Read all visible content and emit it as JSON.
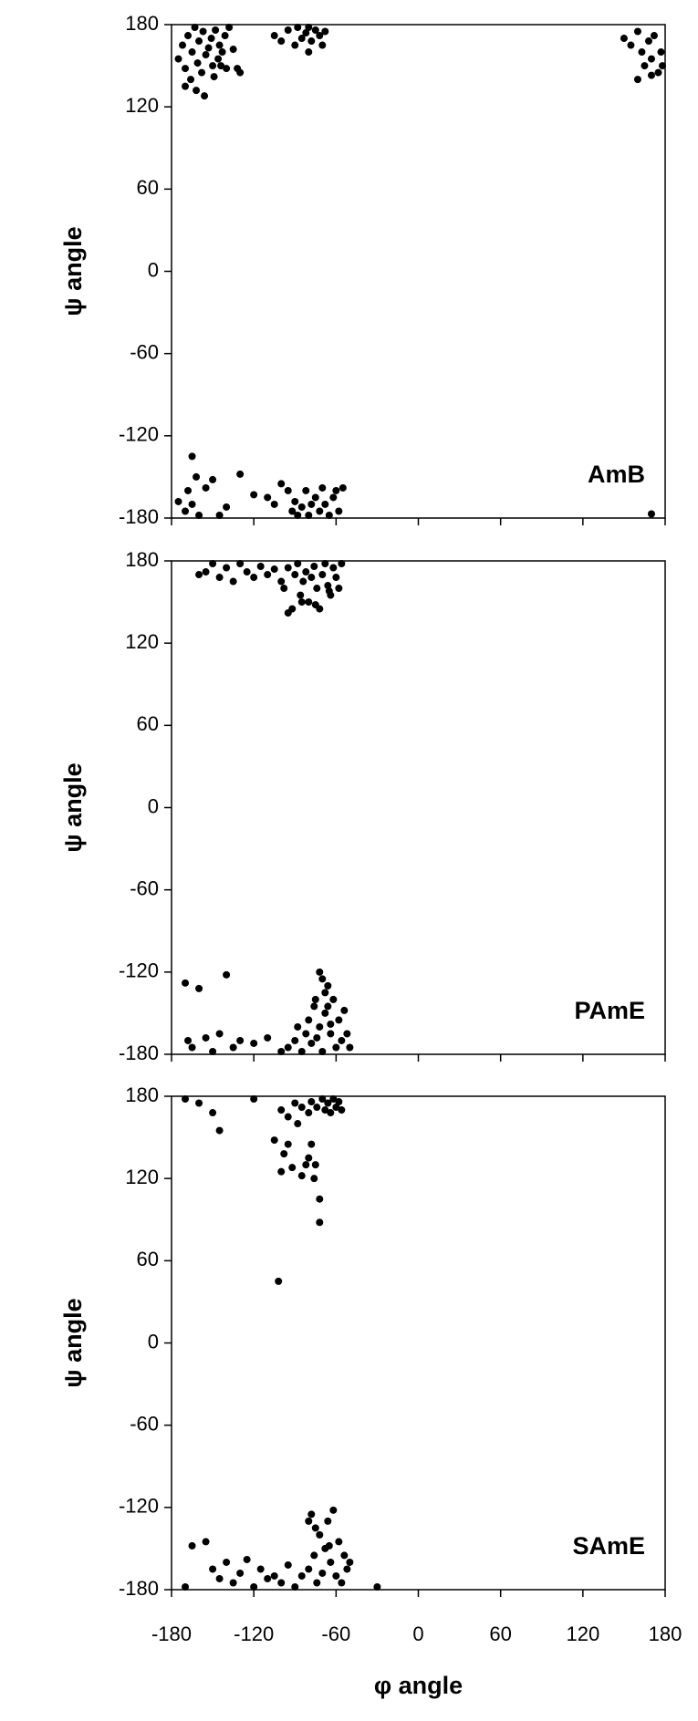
{
  "chart_data": [
    {
      "type": "scatter",
      "label": "AmB",
      "ylabel": "ψ angle",
      "color": "#000000",
      "xlim": [
        -180,
        180
      ],
      "ylim": [
        -180,
        180
      ],
      "xticks": [
        -180,
        -120,
        -60,
        0,
        60,
        120,
        180
      ],
      "yticks": [
        -180,
        -120,
        -60,
        0,
        60,
        120,
        180
      ],
      "x": [
        -175,
        -172,
        -170,
        -168,
        -166,
        -165,
        -163,
        -161,
        -160,
        -158,
        -157,
        -155,
        -153,
        -151,
        -150,
        -148,
        -146,
        -145,
        -143,
        -141,
        -140,
        -138,
        -135,
        -170,
        -162,
        -156,
        -149,
        -144,
        -132,
        -130,
        -105,
        -100,
        -95,
        -90,
        -88,
        -85,
        -82,
        -80,
        -78,
        -75,
        -72,
        -70,
        -68,
        -80,
        150,
        155,
        160,
        163,
        165,
        168,
        170,
        172,
        175,
        177,
        178,
        160,
        170,
        -175,
        -170,
        -168,
        -165,
        -162,
        -160,
        -155,
        -150,
        -145,
        -140,
        -130,
        -120,
        -110,
        -105,
        -100,
        -95,
        -92,
        -90,
        -88,
        -85,
        -82,
        -80,
        -78,
        -75,
        -72,
        -70,
        -68,
        -65,
        -62,
        -60,
        -58,
        -55,
        -165,
        170
      ],
      "y": [
        155,
        165,
        148,
        172,
        140,
        160,
        178,
        152,
        168,
        145,
        175,
        158,
        163,
        170,
        150,
        176,
        155,
        165,
        160,
        172,
        148,
        178,
        162,
        135,
        132,
        128,
        142,
        150,
        148,
        145,
        172,
        168,
        176,
        165,
        178,
        170,
        174,
        160,
        168,
        176,
        172,
        165,
        175,
        178,
        170,
        165,
        175,
        160,
        150,
        168,
        155,
        172,
        145,
        160,
        150,
        140,
        143,
        -168,
        -175,
        -160,
        -170,
        -150,
        -178,
        -158,
        -152,
        -178,
        -172,
        -148,
        -163,
        -165,
        -170,
        -155,
        -160,
        -175,
        -168,
        -178,
        -172,
        -160,
        -178,
        -170,
        -165,
        -175,
        -158,
        -170,
        -178,
        -165,
        -160,
        -175,
        -158,
        -135,
        -177
      ]
    },
    {
      "type": "scatter",
      "label": "PAmE",
      "ylabel": "ψ angle",
      "color": "#000000",
      "xlim": [
        -180,
        180
      ],
      "ylim": [
        -180,
        180
      ],
      "xticks": [
        -180,
        -120,
        -60,
        0,
        60,
        120,
        180
      ],
      "yticks": [
        -180,
        -120,
        -60,
        0,
        60,
        120,
        180
      ],
      "x": [
        -160,
        -155,
        -150,
        -145,
        -140,
        -135,
        -130,
        -125,
        -120,
        -115,
        -110,
        -105,
        -100,
        -98,
        -95,
        -92,
        -90,
        -88,
        -86,
        -84,
        -82,
        -80,
        -78,
        -76,
        -74,
        -72,
        -70,
        -68,
        -66,
        -64,
        -62,
        -60,
        -58,
        -56,
        -95,
        -85,
        -75,
        -65,
        -170,
        -168,
        -165,
        -160,
        -155,
        -150,
        -145,
        -140,
        -135,
        -130,
        -120,
        -110,
        -100,
        -95,
        -90,
        -88,
        -85,
        -82,
        -80,
        -78,
        -76,
        -74,
        -72,
        -70,
        -68,
        -66,
        -64,
        -62,
        -60,
        -58,
        -56,
        -54,
        -52,
        -50,
        -70,
        -68,
        -66,
        -72,
        -75,
        -64
      ],
      "y": [
        170,
        172,
        178,
        168,
        175,
        165,
        178,
        172,
        168,
        176,
        170,
        174,
        165,
        160,
        175,
        145,
        170,
        178,
        155,
        165,
        172,
        150,
        168,
        176,
        160,
        145,
        170,
        178,
        162,
        155,
        175,
        168,
        160,
        178,
        142,
        150,
        148,
        158,
        -128,
        -170,
        -175,
        -132,
        -168,
        -178,
        -165,
        -122,
        -175,
        -170,
        -172,
        -168,
        -178,
        -175,
        -170,
        -160,
        -178,
        -165,
        -155,
        -172,
        -145,
        -168,
        -160,
        -178,
        -150,
        -130,
        -165,
        -140,
        -175,
        -155,
        -170,
        -148,
        -165,
        -175,
        -125,
        -135,
        -145,
        -120,
        -140,
        -158
      ]
    },
    {
      "type": "scatter",
      "label": "SAmE",
      "ylabel": "ψ angle",
      "xlabel": "φ angle",
      "color": "#000000",
      "xlim": [
        -180,
        180
      ],
      "ylim": [
        -180,
        180
      ],
      "xticks": [
        -180,
        -120,
        -60,
        0,
        60,
        120,
        180
      ],
      "yticks": [
        -180,
        -120,
        -60,
        0,
        60,
        120,
        180
      ],
      "x": [
        -170,
        -160,
        -150,
        -145,
        -120,
        -105,
        -100,
        -98,
        -95,
        -92,
        -90,
        -88,
        -85,
        -82,
        -80,
        -78,
        -76,
        -74,
        -72,
        -70,
        -68,
        -66,
        -64,
        -62,
        -60,
        -58,
        -56,
        -100,
        -95,
        -85,
        -80,
        -78,
        -75,
        -72,
        -102,
        -165,
        -155,
        -150,
        -145,
        -140,
        -135,
        -130,
        -125,
        -120,
        -115,
        -110,
        -105,
        -100,
        -95,
        -90,
        -85,
        -80,
        -78,
        -76,
        -74,
        -72,
        -70,
        -68,
        -66,
        -64,
        -62,
        -60,
        -58,
        -56,
        -54,
        -52,
        -50,
        -30,
        -80,
        -75,
        -65,
        -170
      ],
      "y": [
        178,
        175,
        168,
        155,
        178,
        148,
        170,
        138,
        165,
        128,
        175,
        160,
        172,
        130,
        168,
        176,
        120,
        172,
        105,
        178,
        170,
        175,
        168,
        178,
        172,
        176,
        170,
        125,
        145,
        122,
        135,
        145,
        130,
        88,
        45,
        -148,
        -145,
        -165,
        -172,
        -160,
        -175,
        -168,
        -158,
        -178,
        -165,
        -172,
        -170,
        -175,
        -162,
        -178,
        -170,
        -165,
        -125,
        -155,
        -175,
        -140,
        -168,
        -150,
        -130,
        -160,
        -122,
        -170,
        -145,
        -175,
        -155,
        -165,
        -160,
        -178,
        -130,
        -135,
        -148,
        -178
      ]
    }
  ]
}
